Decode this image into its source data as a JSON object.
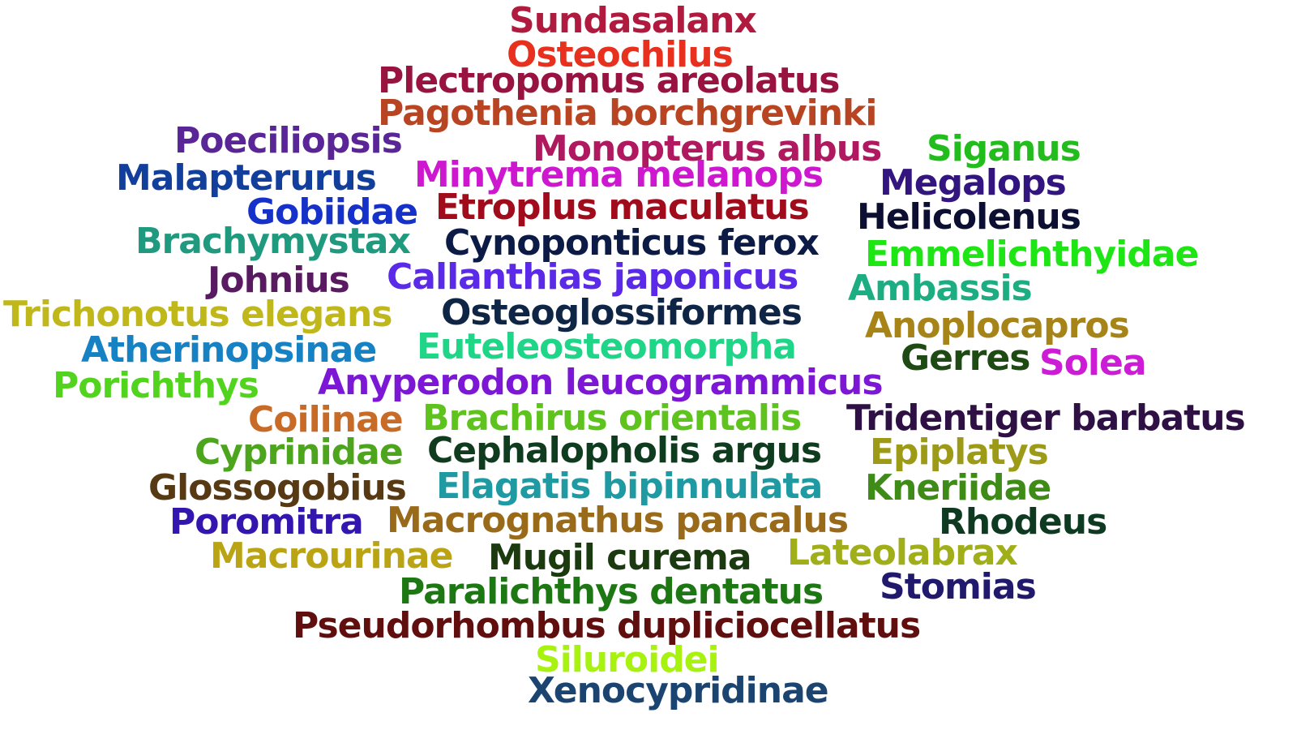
{
  "words": [
    {
      "text": "Sundasalanx",
      "color": "#b01a3e"
    },
    {
      "text": "Osteochilus",
      "color": "#e8301e"
    },
    {
      "text": "Plectropomus areolatus",
      "color": "#98133f"
    },
    {
      "text": "Pagothenia borchgrevinki",
      "color": "#b84422"
    },
    {
      "text": "Poeciliopsis",
      "color": "#5a2596"
    },
    {
      "text": "Monopterus albus",
      "color": "#b0195f"
    },
    {
      "text": "Siganus",
      "color": "#22bd1c"
    },
    {
      "text": "Malapterurus",
      "color": "#133f9c"
    },
    {
      "text": "Minytrema melanops",
      "color": "#cd18cf"
    },
    {
      "text": "Megalops",
      "color": "#32157e"
    },
    {
      "text": "Gobiidae",
      "color": "#1531c9"
    },
    {
      "text": "Etroplus maculatus",
      "color": "#a10c1c"
    },
    {
      "text": "Helicolenus",
      "color": "#0d0f32"
    },
    {
      "text": "Brachymystax",
      "color": "#209a7e"
    },
    {
      "text": "Cynoponticus ferox",
      "color": "#0b1b45"
    },
    {
      "text": "Emmelichthyidae",
      "color": "#1ee615"
    },
    {
      "text": "Johnius",
      "color": "#591a62"
    },
    {
      "text": "Callanthias japonicus",
      "color": "#5a2ae8"
    },
    {
      "text": "Ambassis",
      "color": "#1dad82"
    },
    {
      "text": "Trichonotus elegans",
      "color": "#c0b81a"
    },
    {
      "text": "Osteoglossiformes",
      "color": "#0e2545"
    },
    {
      "text": "Anoplocapros",
      "color": "#a68417"
    },
    {
      "text": "Atherinopsinae",
      "color": "#1682c3"
    },
    {
      "text": "Euteleosteomorpha",
      "color": "#1fd688"
    },
    {
      "text": "Gerres",
      "color": "#1e4a14"
    },
    {
      "text": "Solea",
      "color": "#cd1cd6"
    },
    {
      "text": "Porichthys",
      "color": "#52d41e"
    },
    {
      "text": "Anyperodon leucogrammicus",
      "color": "#7d17d6"
    },
    {
      "text": "Coilinae",
      "color": "#c86b26"
    },
    {
      "text": "Brachirus orientalis",
      "color": "#5ec41d"
    },
    {
      "text": "Tridentiger barbatus",
      "color": "#2f1045"
    },
    {
      "text": "Cyprinidae",
      "color": "#4ca51c"
    },
    {
      "text": "Cephalopholis argus",
      "color": "#0f3b1e"
    },
    {
      "text": "Epiplatys",
      "color": "#9c9a17"
    },
    {
      "text": "Glossogobius",
      "color": "#573a14"
    },
    {
      "text": "Elagatis bipinnulata",
      "color": "#1f9aa3"
    },
    {
      "text": "Kneriidae",
      "color": "#3e8c17"
    },
    {
      "text": "Poromitra",
      "color": "#3316b0"
    },
    {
      "text": "Macrognathus pancalus",
      "color": "#9a6a1b"
    },
    {
      "text": "Rhodeus",
      "color": "#0f3a22"
    },
    {
      "text": "Macrourinae",
      "color": "#bba414"
    },
    {
      "text": "Mugil curema",
      "color": "#1c3a10"
    },
    {
      "text": "Lateolabrax",
      "color": "#a0ae19"
    },
    {
      "text": "Paralichthys dentatus",
      "color": "#1d7814"
    },
    {
      "text": "Stomias",
      "color": "#211a6c"
    },
    {
      "text": "Pseudorhombus dupliciocellatus",
      "color": "#600e0e"
    },
    {
      "text": "Siluroidei",
      "color": "#a8f20f"
    },
    {
      "text": "Xenocypridinae",
      "color": "#1b4470"
    }
  ]
}
